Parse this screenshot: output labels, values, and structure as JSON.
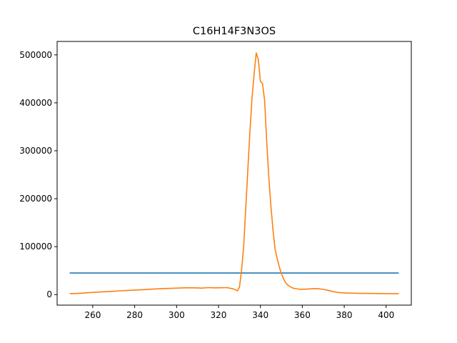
{
  "chart_data": {
    "type": "line",
    "title": "C16H14F3N3OS",
    "xlabel": "",
    "ylabel": "",
    "xlim": [
      243,
      412
    ],
    "ylim": [
      -22000,
      528000
    ],
    "x_ticks": [
      260,
      280,
      300,
      320,
      340,
      360,
      380,
      400
    ],
    "y_ticks": [
      0,
      100000,
      200000,
      300000,
      400000,
      500000
    ],
    "x_tick_labels": [
      "260",
      "280",
      "300",
      "320",
      "340",
      "360",
      "380",
      "400"
    ],
    "y_tick_labels": [
      "0",
      "100000",
      "200000",
      "300000",
      "400000",
      "500000"
    ],
    "grid": false,
    "series": [
      {
        "color": "#1f77b4",
        "x": [
          249,
          406
        ],
        "y": [
          45000,
          45000
        ]
      },
      {
        "color": "#ff7f0e",
        "x": [
          249,
          252,
          255,
          258,
          261,
          264,
          267,
          270,
          273,
          276,
          279,
          282,
          285,
          288,
          291,
          294,
          297,
          300,
          303,
          306,
          309,
          312,
          315,
          318,
          321,
          324,
          327,
          329,
          330,
          331,
          332,
          333,
          334,
          335,
          336,
          337,
          338,
          339,
          340,
          341,
          342,
          343,
          344,
          345,
          346,
          347,
          348,
          349,
          350,
          351,
          352,
          353,
          354,
          355,
          356,
          358,
          360,
          362,
          364,
          366,
          368,
          370,
          372,
          374,
          376,
          378,
          380,
          383,
          386,
          390,
          394,
          398,
          402,
          406
        ],
        "y": [
          2000,
          2300,
          3000,
          4000,
          4800,
          5500,
          6200,
          7000,
          7800,
          8500,
          9200,
          9800,
          10500,
          11200,
          12000,
          12500,
          13000,
          13500,
          14000,
          14200,
          14000,
          13500,
          14500,
          14000,
          14200,
          14500,
          12000,
          8000,
          15000,
          50000,
          100000,
          180000,
          260000,
          340000,
          410000,
          460000,
          504000,
          490000,
          445000,
          440000,
          405000,
          320000,
          245000,
          185000,
          135000,
          95000,
          75000,
          58000,
          44000,
          33000,
          25000,
          20000,
          17000,
          14500,
          13000,
          11500,
          11000,
          11500,
          12000,
          12500,
          12000,
          11000,
          9000,
          7000,
          5000,
          4000,
          3500,
          3000,
          2700,
          2500,
          2300,
          2100,
          2000,
          1900
        ]
      }
    ]
  }
}
